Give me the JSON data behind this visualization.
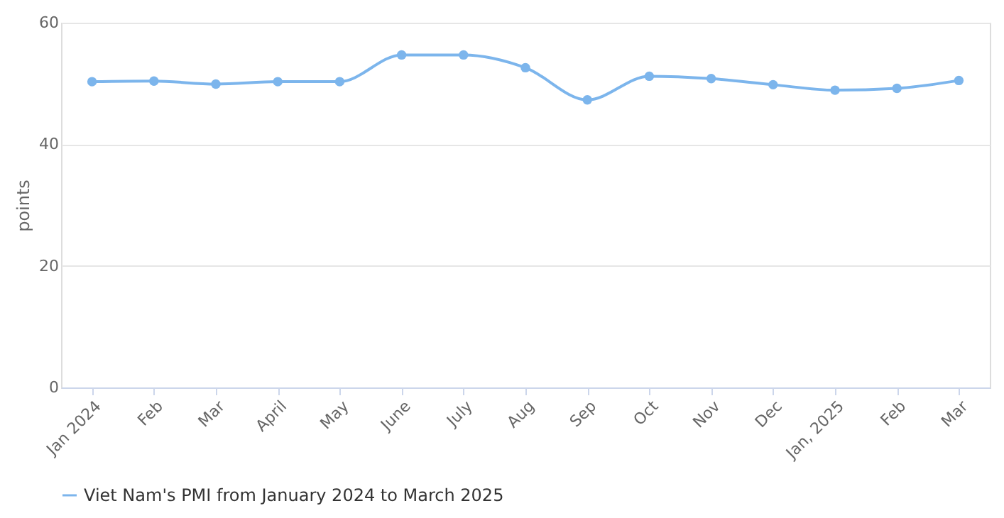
{
  "chart_data": {
    "type": "line",
    "ylabel": "points",
    "categories": [
      "Jan 2024",
      "Feb",
      "Mar",
      "April",
      "May",
      "June",
      "July",
      "Aug",
      "Sep",
      "Oct",
      "Nov",
      "Dec",
      "Jan, 2025",
      "Feb",
      "Mar"
    ],
    "series": [
      {
        "name": "Viet Nam's PMI from January 2024 to March 2025",
        "color": "#7cb5ec",
        "values": [
          50.3,
          50.4,
          49.9,
          50.3,
          50.3,
          54.7,
          54.7,
          52.6,
          47.3,
          51.2,
          50.8,
          49.8,
          48.9,
          49.2,
          50.5
        ]
      }
    ],
    "ylim": [
      0,
      60
    ],
    "yticks": [
      0,
      20,
      40,
      60
    ],
    "grid": "y",
    "legend": "bottom",
    "marker": "circle",
    "line_style": "solid"
  }
}
